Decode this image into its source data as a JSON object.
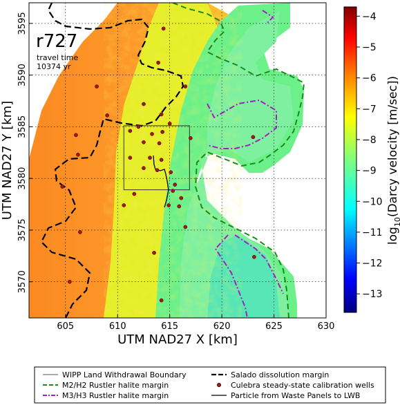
{
  "map": {
    "run_id": "r727",
    "travel_time_label": "travel time",
    "travel_time_value": "10374 yr",
    "x_axis_label": "UTM NAD27 X [km]",
    "y_axis_label": "UTM NAD27 Y [km]",
    "x_ticks": [
      "605",
      "610",
      "615",
      "620",
      "625",
      "630"
    ],
    "y_ticks": [
      "3570",
      "3575",
      "3580",
      "3585",
      "3590",
      "3595"
    ],
    "x_range_km": [
      601.5,
      630
    ],
    "y_range_km": [
      3566.5,
      3597
    ]
  },
  "colorbar": {
    "label_prefix": "log",
    "label_sub": "10",
    "label_suffix": "(Darcy velocity [m/sec])",
    "ticks": [
      "-4",
      "-5",
      "-6",
      "-7",
      "-8",
      "-9",
      "-10",
      "-11",
      "-12",
      "-13"
    ],
    "range": [
      -13.6,
      -3.7
    ],
    "colormap": [
      "#00007f",
      "#0000ff",
      "#007fff",
      "#00ffff",
      "#7fff7f",
      "#ffff00",
      "#ff7f00",
      "#ff0000",
      "#7f0000"
    ]
  },
  "legend": {
    "items": [
      {
        "label": "WIPP Land Withdrawal Boundary",
        "style": "thin-solid",
        "color": "#555555"
      },
      {
        "label": "M2/H2 Rustler halite margin",
        "style": "dashed",
        "color": "#1a8a1a"
      },
      {
        "label": "M3/H3 Rustler halite margin",
        "style": "dash-dot",
        "color": "#a020c0"
      },
      {
        "label": "Salado dissolution margin",
        "style": "thick-dashed",
        "color": "#000000"
      },
      {
        "label": "Culebra steady-state calibration wells",
        "style": "marker",
        "color": "#a01818"
      },
      {
        "label": "Particle from Waste Panels to LWB",
        "style": "solid",
        "color": "#000000"
      }
    ]
  },
  "wells_km": [
    [
      614.4,
      3594.5
    ],
    [
      613.9,
      3591.2
    ],
    [
      616.5,
      3588.9
    ],
    [
      608.0,
      3588.9
    ],
    [
      612.5,
      3587.2
    ],
    [
      609.0,
      3586.1
    ],
    [
      614.2,
      3586.2
    ],
    [
      615.0,
      3585.3
    ],
    [
      612.0,
      3585.0
    ],
    [
      611.2,
      3584.6
    ],
    [
      614.3,
      3584.5
    ],
    [
      613.3,
      3584.3
    ],
    [
      606.0,
      3584.2
    ],
    [
      617.0,
      3583.9
    ],
    [
      623.0,
      3584.0
    ],
    [
      612.5,
      3583.5
    ],
    [
      614.0,
      3583.4
    ],
    [
      606.2,
      3582.3
    ],
    [
      611.2,
      3582.0
    ],
    [
      613.1,
      3582.0
    ],
    [
      614.2,
      3581.8
    ],
    [
      612.5,
      3581.0
    ],
    [
      613.8,
      3580.8
    ],
    [
      615.1,
      3580.6
    ],
    [
      604.7,
      3579.2
    ],
    [
      615.5,
      3579.4
    ],
    [
      615.3,
      3578.8
    ],
    [
      611.6,
      3578.5
    ],
    [
      616.1,
      3578.1
    ],
    [
      614.9,
      3577.4
    ],
    [
      610.6,
      3577.4
    ],
    [
      615.9,
      3577.3
    ],
    [
      606.4,
      3574.8
    ],
    [
      616.5,
      3575.3
    ],
    [
      613.5,
      3572.8
    ],
    [
      623.1,
      3572.4
    ],
    [
      605.4,
      3570.0
    ],
    [
      614.2,
      3568.2
    ]
  ],
  "wipp_boundary_km": [
    [
      610.6,
      3585.1
    ],
    [
      616.9,
      3585.1
    ],
    [
      616.9,
      3578.9
    ],
    [
      610.6,
      3578.9
    ]
  ]
}
